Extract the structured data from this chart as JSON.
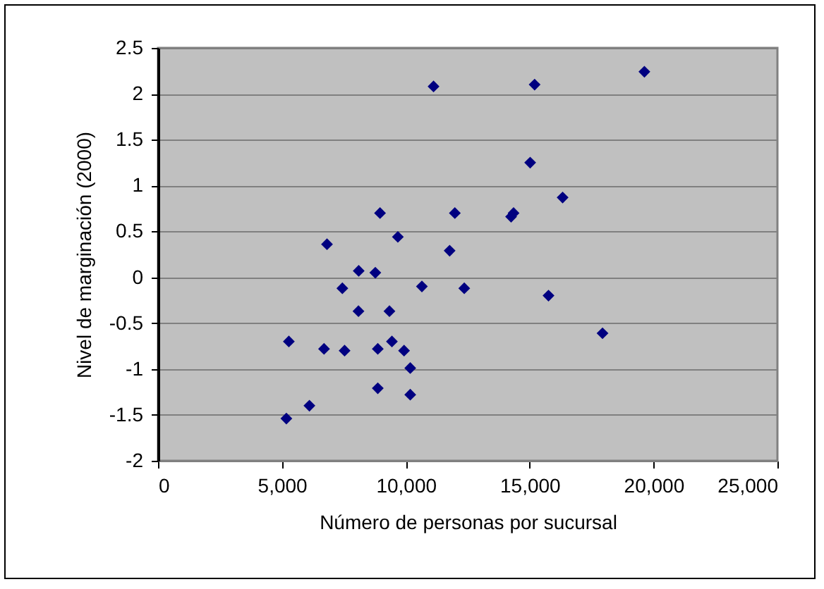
{
  "chart_data": {
    "type": "scatter",
    "xlabel": "Número de personas por sucursal",
    "ylabel": "Nivel de marginación (2000)",
    "x": [
      11120,
      15200,
      19630,
      15020,
      16330,
      14250,
      14350,
      8960,
      11980,
      9680,
      6820,
      11770,
      8100,
      8770,
      7440,
      10650,
      12360,
      15760,
      8090,
      9340,
      17940,
      5280,
      6700,
      7530,
      8870,
      9440,
      9930,
      10180,
      8870,
      10180,
      6110,
      5180
    ],
    "series": [
      {
        "color": "#000080",
        "values": [
          2.08,
          2.1,
          2.24,
          1.25,
          0.87,
          0.66,
          0.7,
          0.7,
          0.7,
          0.44,
          0.36,
          0.29,
          0.07,
          0.05,
          -0.12,
          -0.1,
          -0.12,
          -0.2,
          -0.37,
          -0.37,
          -0.61,
          -0.7,
          -0.78,
          -0.8,
          -0.78,
          -0.7,
          -0.8,
          -0.99,
          -1.21,
          -1.28,
          -1.4,
          -1.54
        ]
      }
    ],
    "xlim": [
      0,
      25000
    ],
    "ylim": [
      -2,
      2.5
    ],
    "xticks": [
      0,
      {
        "value": 5000,
        "label": "5,000"
      },
      {
        "value": 10000,
        "label": "10,000"
      },
      {
        "value": 15000,
        "label": "15,000"
      },
      {
        "value": 20000,
        "label": "20,000"
      },
      {
        "value": 25000,
        "label": "25,000"
      }
    ],
    "yticks": [
      -2,
      -1.5,
      -1,
      -0.5,
      0,
      0.5,
      1,
      1.5,
      2,
      2.5
    ],
    "grid": "y",
    "marker": "diamond"
  }
}
